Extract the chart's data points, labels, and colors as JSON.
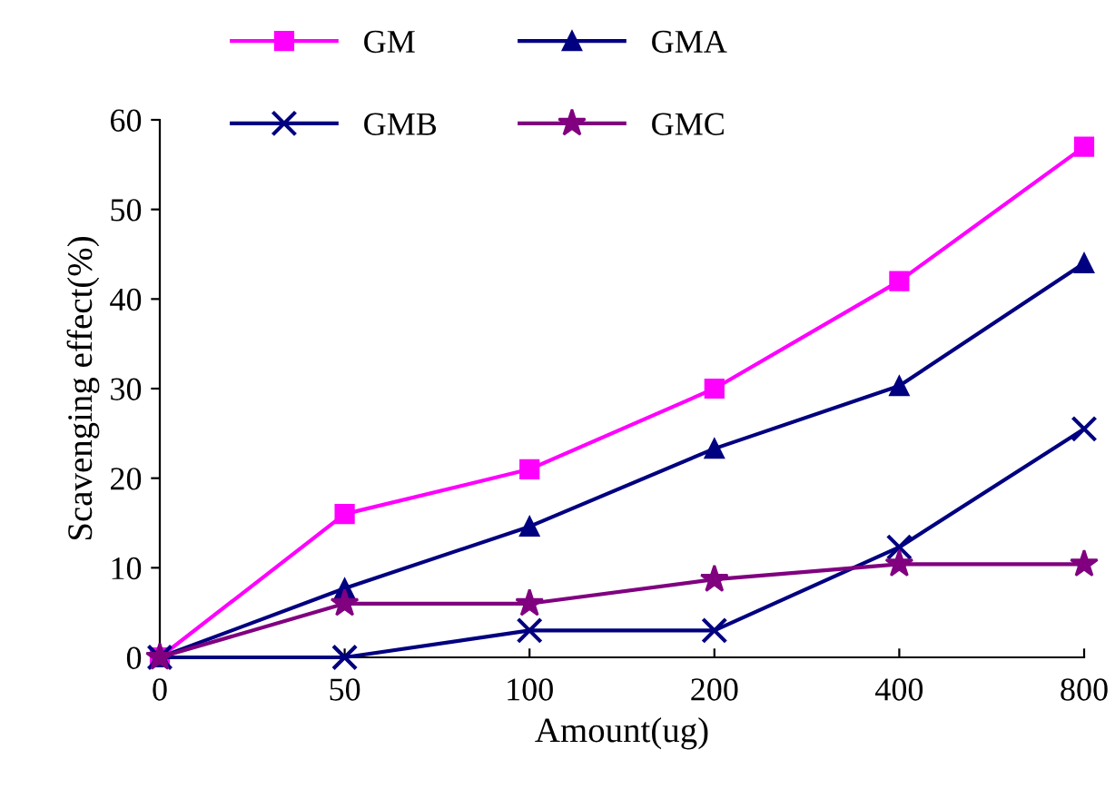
{
  "chart_data": {
    "type": "line",
    "xlabel": "Amount(ug)",
    "ylabel": "Scavenging effect(%)",
    "categories": [
      "0",
      "50",
      "100",
      "200",
      "400",
      "800"
    ],
    "ylim": [
      0,
      60
    ],
    "yticks": [
      0,
      10,
      20,
      30,
      40,
      50,
      60
    ],
    "grid": false,
    "legend": "top",
    "line_style": "solid",
    "series": [
      {
        "name": "GM",
        "color": "#ff00ff",
        "marker": "square",
        "values": [
          0,
          16,
          21,
          30,
          42,
          57
        ]
      },
      {
        "name": "GMA",
        "color": "#000080",
        "marker": "triangle",
        "values": [
          0,
          7.7,
          14.6,
          23.3,
          30.3,
          44
        ]
      },
      {
        "name": "GMB",
        "color": "#000080",
        "marker": "cross",
        "values": [
          0,
          0,
          3,
          3,
          12.3,
          25.5
        ]
      },
      {
        "name": "GMC",
        "color": "#800080",
        "marker": "star",
        "values": [
          0,
          6,
          6,
          8.7,
          10.4,
          10.4
        ]
      }
    ]
  }
}
